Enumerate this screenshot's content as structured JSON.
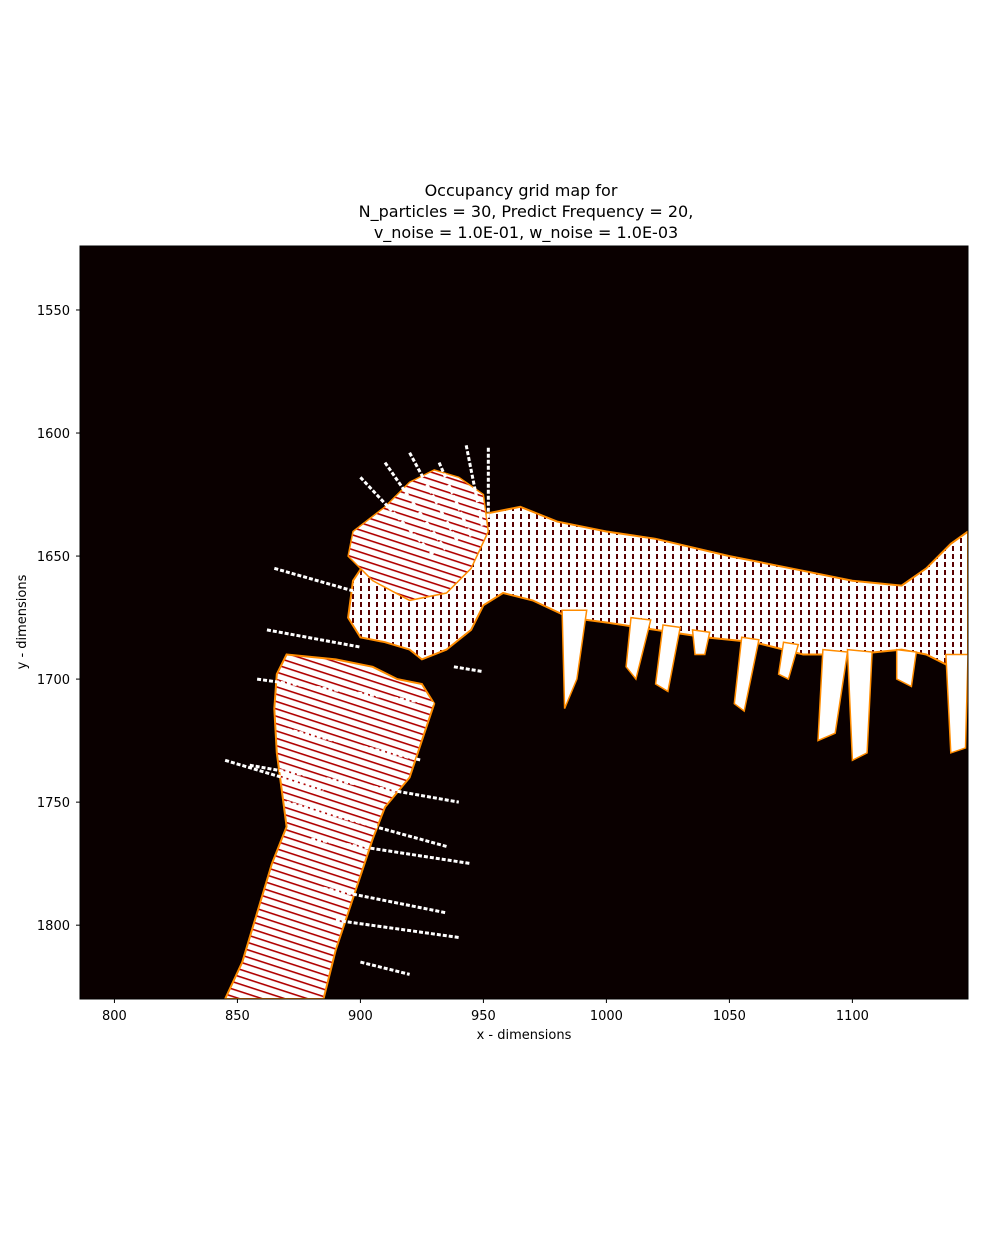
{
  "chart_data": {
    "type": "heatmap",
    "title_lines": [
      "Occupancy grid map for",
      "N_particles = 30, Predict Frequency = 20,",
      "v_noise = 1.0E-01, w_noise = 1.0E-03"
    ],
    "xlabel": "x - dimensions",
    "ylabel": "y - dimensions",
    "xlim": [
      786,
      1147
    ],
    "ylim": [
      1830,
      1524
    ],
    "x_ticks": [
      800,
      850,
      900,
      950,
      1000,
      1050,
      1100
    ],
    "y_ticks": [
      1550,
      1600,
      1650,
      1700,
      1750,
      1800
    ],
    "x_tick_labels": [
      "800",
      "850",
      "900",
      "950",
      "1000",
      "1050",
      "1100"
    ],
    "y_tick_labels": [
      "1550",
      "1600",
      "1650",
      "1700",
      "1750",
      "1800"
    ],
    "colormap": "afmhot",
    "colors": {
      "free": "#ffffff",
      "edge": "#ff8c00",
      "occupied": "#0a0000",
      "mid": "#b00000"
    },
    "grid": false,
    "legend": "none",
    "regions": {
      "corridor_top": [
        [
          950,
          1633
        ],
        [
          965,
          1630
        ],
        [
          980,
          1636
        ],
        [
          1000,
          1640
        ],
        [
          1020,
          1643
        ],
        [
          1050,
          1650
        ],
        [
          1080,
          1656
        ],
        [
          1100,
          1660
        ],
        [
          1120,
          1662
        ],
        [
          1130,
          1655
        ],
        [
          1140,
          1645
        ],
        [
          1147,
          1640
        ],
        [
          1147,
          1700
        ],
        [
          1140,
          1695
        ],
        [
          1130,
          1690
        ],
        [
          1120,
          1688
        ],
        [
          1100,
          1690
        ],
        [
          1080,
          1690
        ],
        [
          1060,
          1685
        ],
        [
          1040,
          1683
        ],
        [
          1020,
          1680
        ],
        [
          1000,
          1677
        ],
        [
          985,
          1675
        ],
        [
          970,
          1668
        ],
        [
          958,
          1665
        ],
        [
          950,
          1670
        ],
        [
          945,
          1680
        ],
        [
          935,
          1688
        ],
        [
          925,
          1692
        ],
        [
          920,
          1688
        ],
        [
          910,
          1685
        ],
        [
          900,
          1683
        ],
        [
          895,
          1675
        ],
        [
          897,
          1660
        ],
        [
          905,
          1648
        ],
        [
          915,
          1640
        ],
        [
          930,
          1633
        ],
        [
          945,
          1630
        ]
      ],
      "fan_wedge": [
        [
          897,
          1640
        ],
        [
          910,
          1630
        ],
        [
          920,
          1620
        ],
        [
          930,
          1615
        ],
        [
          940,
          1618
        ],
        [
          950,
          1625
        ],
        [
          952,
          1640
        ],
        [
          945,
          1655
        ],
        [
          935,
          1665
        ],
        [
          920,
          1668
        ],
        [
          905,
          1660
        ],
        [
          895,
          1650
        ]
      ],
      "corridor_left": [
        [
          870,
          1690
        ],
        [
          890,
          1692
        ],
        [
          905,
          1695
        ],
        [
          915,
          1700
        ],
        [
          925,
          1702
        ],
        [
          930,
          1710
        ],
        [
          925,
          1725
        ],
        [
          920,
          1740
        ],
        [
          910,
          1752
        ],
        [
          905,
          1765
        ],
        [
          900,
          1780
        ],
        [
          895,
          1795
        ],
        [
          890,
          1810
        ],
        [
          885,
          1830
        ],
        [
          845,
          1830
        ],
        [
          852,
          1815
        ],
        [
          858,
          1795
        ],
        [
          864,
          1775
        ],
        [
          870,
          1760
        ],
        [
          868,
          1745
        ],
        [
          866,
          1730
        ],
        [
          865,
          1712
        ],
        [
          866,
          1698
        ]
      ],
      "stalactites": [
        [
          [
            982,
            1672
          ],
          [
            992,
            1672
          ],
          [
            988,
            1700
          ],
          [
            983,
            1712
          ]
        ],
        [
          [
            1010,
            1675
          ],
          [
            1018,
            1676
          ],
          [
            1012,
            1700
          ],
          [
            1008,
            1695
          ]
        ],
        [
          [
            1023,
            1678
          ],
          [
            1030,
            1679
          ],
          [
            1025,
            1705
          ],
          [
            1020,
            1702
          ]
        ],
        [
          [
            1035,
            1680
          ],
          [
            1042,
            1681
          ],
          [
            1040,
            1690
          ],
          [
            1036,
            1690
          ]
        ],
        [
          [
            1055,
            1683
          ],
          [
            1062,
            1684
          ],
          [
            1056,
            1713
          ],
          [
            1052,
            1710
          ]
        ],
        [
          [
            1072,
            1685
          ],
          [
            1078,
            1686
          ],
          [
            1074,
            1700
          ],
          [
            1070,
            1698
          ]
        ],
        [
          [
            1088,
            1688
          ],
          [
            1098,
            1689
          ],
          [
            1093,
            1722
          ],
          [
            1086,
            1725
          ]
        ],
        [
          [
            1098,
            1688
          ],
          [
            1108,
            1689
          ],
          [
            1106,
            1730
          ],
          [
            1100,
            1733
          ]
        ],
        [
          [
            1118,
            1688
          ],
          [
            1126,
            1689
          ],
          [
            1124,
            1703
          ],
          [
            1118,
            1700
          ]
        ],
        [
          [
            1138,
            1690
          ],
          [
            1147,
            1690
          ],
          [
            1146,
            1728
          ],
          [
            1140,
            1730
          ]
        ]
      ],
      "rays": [
        [
          [
            865,
            1655
          ],
          [
            900,
            1665
          ]
        ],
        [
          [
            862,
            1680
          ],
          [
            900,
            1687
          ]
        ],
        [
          [
            858,
            1700
          ],
          [
            930,
            1710
          ]
        ],
        [
          [
            855,
            1735
          ],
          [
            940,
            1750
          ]
        ],
        [
          [
            845,
            1733
          ],
          [
            885,
            1745
          ]
        ],
        [
          [
            870,
            1750
          ],
          [
            935,
            1768
          ]
        ],
        [
          [
            880,
            1765
          ],
          [
            945,
            1775
          ]
        ],
        [
          [
            885,
            1785
          ],
          [
            935,
            1795
          ]
        ],
        [
          [
            890,
            1798
          ],
          [
            940,
            1805
          ]
        ],
        [
          [
            900,
            1815
          ],
          [
            920,
            1820
          ]
        ],
        [
          [
            900,
            1618
          ],
          [
            930,
            1650
          ]
        ],
        [
          [
            910,
            1612
          ],
          [
            935,
            1648
          ]
        ],
        [
          [
            920,
            1608
          ],
          [
            940,
            1645
          ]
        ],
        [
          [
            932,
            1612
          ],
          [
            945,
            1642
          ]
        ],
        [
          [
            943,
            1605
          ],
          [
            950,
            1640
          ]
        ],
        [
          [
            952,
            1606
          ],
          [
            952,
            1635
          ]
        ],
        [
          [
            938,
            1695
          ],
          [
            950,
            1697
          ]
        ],
        [
          [
            868,
            1720
          ],
          [
            925,
            1733
          ]
        ]
      ]
    }
  }
}
